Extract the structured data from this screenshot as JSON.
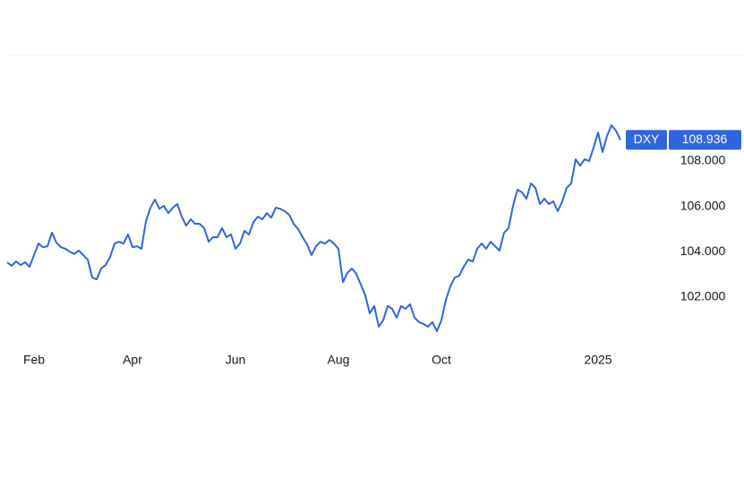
{
  "chart_data": {
    "type": "line",
    "categories": [
      null,
      null,
      null,
      null,
      null,
      null,
      "Feb",
      null,
      null,
      null,
      null,
      null,
      null,
      null,
      null,
      null,
      null,
      null,
      null,
      null,
      null,
      null,
      null,
      null,
      null,
      null,
      null,
      null,
      "Apr",
      null,
      null,
      null,
      null,
      null,
      null,
      null,
      null,
      null,
      null,
      null,
      null,
      null,
      null,
      null,
      null,
      null,
      null,
      null,
      null,
      null,
      null,
      "Jun",
      null,
      null,
      null,
      null,
      null,
      null,
      null,
      null,
      null,
      null,
      null,
      null,
      null,
      null,
      null,
      null,
      null,
      null,
      null,
      null,
      null,
      null,
      "Aug",
      null,
      null,
      null,
      null,
      null,
      null,
      null,
      null,
      null,
      null,
      null,
      null,
      null,
      null,
      null,
      null,
      null,
      null,
      null,
      null,
      null,
      null,
      "Oct",
      null,
      null,
      null,
      null,
      null,
      null,
      null,
      null,
      null,
      null,
      null,
      null,
      null,
      null,
      null,
      null,
      null,
      null,
      null,
      null,
      null,
      null,
      null,
      null,
      null,
      null,
      null,
      null,
      null,
      null,
      null,
      null,
      null,
      null,
      "2025",
      null,
      null,
      null,
      null,
      null
    ],
    "series": [
      {
        "name": "DXY",
        "color": "#2f66e0",
        "values": [
          103.53,
          103.38,
          103.57,
          103.41,
          103.53,
          103.34,
          103.85,
          104.36,
          104.2,
          104.24,
          104.84,
          104.4,
          104.2,
          104.13,
          104.0,
          103.9,
          104.05,
          103.85,
          103.65,
          102.86,
          102.78,
          103.26,
          103.41,
          103.77,
          104.36,
          104.44,
          104.36,
          104.76,
          104.2,
          104.24,
          104.13,
          105.35,
          105.94,
          106.3,
          105.9,
          106.02,
          105.7,
          105.94,
          106.1,
          105.55,
          105.15,
          105.43,
          105.23,
          105.23,
          105.04,
          104.44,
          104.64,
          104.64,
          105.04,
          104.64,
          104.76,
          104.13,
          104.36,
          104.92,
          104.76,
          105.3,
          105.55,
          105.43,
          105.7,
          105.5,
          105.94,
          105.9,
          105.79,
          105.63,
          105.23,
          105.0,
          104.64,
          104.32,
          103.85,
          104.24,
          104.44,
          104.36,
          104.52,
          104.36,
          104.13,
          102.66,
          103.06,
          103.26,
          103.02,
          102.55,
          102.07,
          101.28,
          101.6,
          100.69,
          100.97,
          101.6,
          101.48,
          101.09,
          101.6,
          101.48,
          101.68,
          101.09,
          100.89,
          100.81,
          100.69,
          100.89,
          100.49,
          100.97,
          101.87,
          102.47,
          102.86,
          102.94,
          103.34,
          103.65,
          103.57,
          104.13,
          104.36,
          104.13,
          104.44,
          104.24,
          104.05,
          104.84,
          105.04,
          106.02,
          106.74,
          106.62,
          106.34,
          107.01,
          106.82,
          106.1,
          106.34,
          106.1,
          106.22,
          105.79,
          106.22,
          106.82,
          107.01,
          108.08,
          107.8,
          108.08,
          108.0,
          108.6,
          109.26,
          108.4,
          109.11,
          109.58,
          109.34,
          108.936
        ]
      }
    ],
    "ylim": [
      99.7,
      112.66
    ],
    "yticks": [
      {
        "value": 102,
        "label": "102.000"
      },
      {
        "value": 104,
        "label": "104.000"
      },
      {
        "value": 106,
        "label": "106.000"
      },
      {
        "value": 108,
        "label": "108.000"
      }
    ]
  }
}
